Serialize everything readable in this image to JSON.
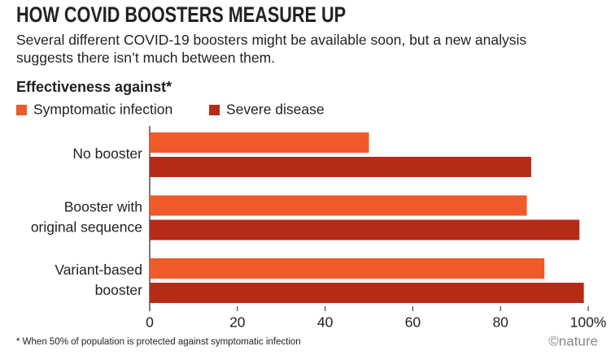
{
  "chart_data": {
    "type": "bar",
    "orientation": "horizontal",
    "title": "HOW COVID BOOSTERS MEASURE UP",
    "subtitle": "Several different COVID-19 boosters might be available soon, but a new analysis suggests there isn’t much between them.",
    "legend_title": "Effectiveness against*",
    "categories": [
      "No booster",
      "Booster with\noriginal sequence",
      "Variant-based\nbooster"
    ],
    "series": [
      {
        "name": "Symptomatic infection",
        "color": "#ee5a29",
        "values": [
          50,
          86,
          90
        ]
      },
      {
        "name": "Severe disease",
        "color": "#b52b18",
        "values": [
          87,
          98,
          99
        ]
      }
    ],
    "xlim": [
      0,
      100
    ],
    "xticks": [
      0,
      20,
      40,
      60,
      80,
      {
        "value": 100,
        "label": "100%"
      }
    ],
    "footnote": "* When 50% of population is protected against symptomatic infection",
    "credit": "©nature"
  }
}
